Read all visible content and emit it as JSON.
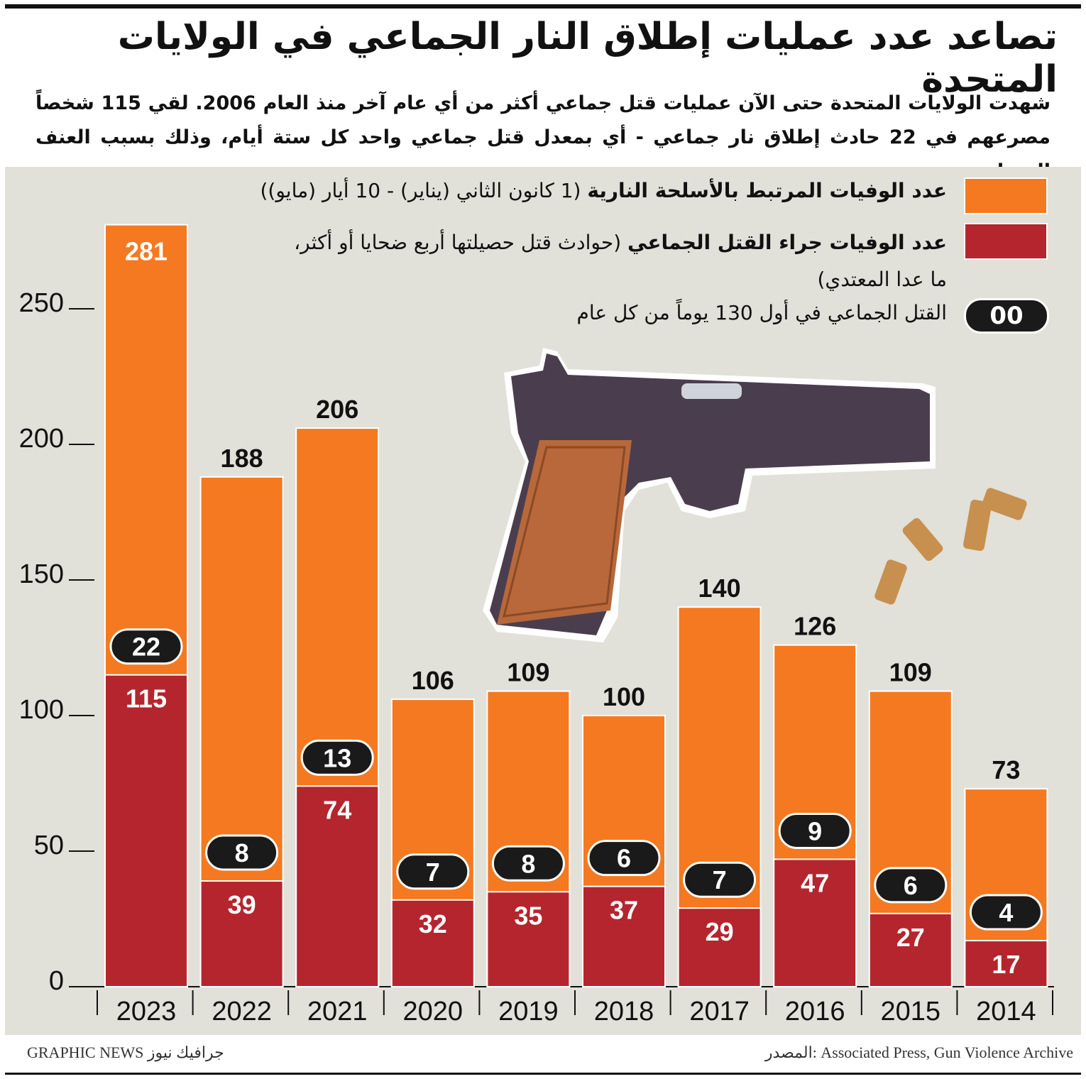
{
  "title": "تصاعد عدد عمليات إطلاق النار الجماعي في الولايات المتحدة",
  "subtitle": "شهدت الولايات المتحدة حتى الآن عمليات قتل جماعي أكثر من أي عام آخر منذ العام 2006. لقي 115 شخصاً مصرعهم في 22 حادث إطلاق نار جماعي - أي بمعدل قتل جماعي واحد كل ستة أيام، وذلك بسبب العنف المسلح",
  "legend": {
    "gun_deaths_bold": "عدد الوفيات المرتبط بالأسلحة النارية",
    "gun_deaths_note": "(1 كانون الثاني (يناير) - 10 أيار (مايو))",
    "mass_deaths_bold": "عدد الوفيات جراء القتل الجماعي",
    "mass_deaths_note": "(حوادث قتل حصيلتها أربع ضحايا أو أكثر، ما عدا المعتدي)",
    "pill_sample": "00",
    "pill_label": "القتل الجماعي في أول 130 يوماً من كل عام"
  },
  "footer": {
    "source": "المصدر: Associated Press, Gun Violence Archive",
    "credit": "GRAPHIC NEWS جرافيك نيوز"
  },
  "colors": {
    "gun_deaths": "#f47920",
    "mass_deaths": "#b5252e",
    "pill": "#1a1a1a",
    "background": "#e1e0d9"
  },
  "chart_data": {
    "type": "bar",
    "stacked": "overlay",
    "categories": [
      "2023",
      "2022",
      "2021",
      "2020",
      "2019",
      "2018",
      "2017",
      "2016",
      "2015",
      "2014"
    ],
    "series": [
      {
        "name": "عدد الوفيات المرتبط بالأسلحة النارية",
        "values": [
          281,
          188,
          206,
          106,
          109,
          100,
          140,
          126,
          109,
          73
        ]
      },
      {
        "name": "عدد الوفيات جراء القتل الجماعي",
        "values": [
          115,
          39,
          74,
          32,
          35,
          37,
          29,
          47,
          27,
          17
        ]
      },
      {
        "name": "القتل الجماعي في أول 130 يوماً من كل عام",
        "values": [
          22,
          8,
          13,
          7,
          8,
          6,
          7,
          9,
          6,
          4
        ]
      }
    ],
    "yticks": [
      0,
      50,
      100,
      150,
      200,
      250
    ],
    "ylim": [
      0,
      290
    ],
    "grid": false,
    "legend_position": "top-right"
  }
}
